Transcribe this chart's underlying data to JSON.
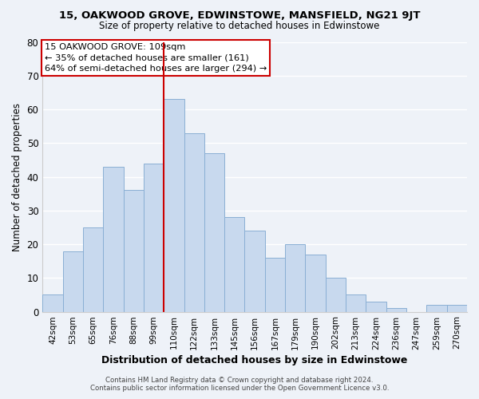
{
  "title": "15, OAKWOOD GROVE, EDWINSTOWE, MANSFIELD, NG21 9JT",
  "subtitle": "Size of property relative to detached houses in Edwinstowe",
  "xlabel": "Distribution of detached houses by size in Edwinstowe",
  "ylabel": "Number of detached properties",
  "bar_labels": [
    "42sqm",
    "53sqm",
    "65sqm",
    "76sqm",
    "88sqm",
    "99sqm",
    "110sqm",
    "122sqm",
    "133sqm",
    "145sqm",
    "156sqm",
    "167sqm",
    "179sqm",
    "190sqm",
    "202sqm",
    "213sqm",
    "224sqm",
    "236sqm",
    "247sqm",
    "259sqm",
    "270sqm"
  ],
  "bar_values": [
    5,
    18,
    25,
    43,
    36,
    44,
    63,
    53,
    47,
    28,
    24,
    16,
    20,
    17,
    10,
    5,
    3,
    1,
    0,
    2,
    2
  ],
  "bar_color": "#c8d9ee",
  "bar_edge_color": "#8aafd4",
  "vline_x_index": 6,
  "vline_color": "#cc0000",
  "annotation_title": "15 OAKWOOD GROVE: 109sqm",
  "annotation_line1": "← 35% of detached houses are smaller (161)",
  "annotation_line2": "64% of semi-detached houses are larger (294) →",
  "annotation_box_facecolor": "#ffffff",
  "annotation_box_edge": "#cc0000",
  "ylim": [
    0,
    80
  ],
  "yticks": [
    0,
    10,
    20,
    30,
    40,
    50,
    60,
    70,
    80
  ],
  "footer1": "Contains HM Land Registry data © Crown copyright and database right 2024.",
  "footer2": "Contains public sector information licensed under the Open Government Licence v3.0.",
  "bg_color": "#eef2f8",
  "grid_color": "#ffffff",
  "spine_color": "#cccccc"
}
